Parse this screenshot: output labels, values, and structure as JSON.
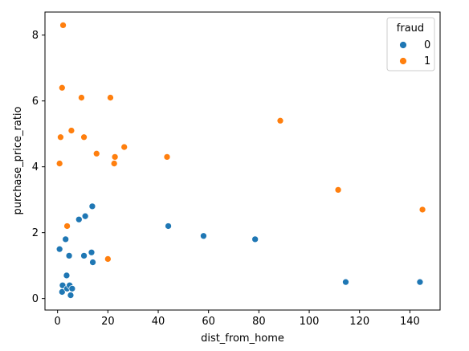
{
  "chart_data": {
    "type": "scatter",
    "xlabel": "dist_from_home",
    "ylabel": "purchase_price_ratio",
    "xlim": [
      -5,
      152
    ],
    "ylim": [
      -0.35,
      8.7
    ],
    "xticks": [
      0,
      20,
      40,
      60,
      80,
      100,
      120,
      140
    ],
    "yticks": [
      0,
      2,
      4,
      6,
      8
    ],
    "grid": false,
    "legend": {
      "title": "fraud",
      "placement": "top-right"
    },
    "series": [
      {
        "name": "0",
        "color": "#1f77b4",
        "points": [
          [
            0.8,
            1.5
          ],
          [
            1.8,
            0.2
          ],
          [
            2.0,
            0.4
          ],
          [
            3.2,
            1.8
          ],
          [
            3.6,
            0.7
          ],
          [
            3.8,
            0.3
          ],
          [
            4.6,
            1.3
          ],
          [
            4.8,
            0.4
          ],
          [
            5.2,
            0.1
          ],
          [
            5.8,
            0.3
          ],
          [
            8.5,
            2.4
          ],
          [
            10.5,
            1.3
          ],
          [
            11.0,
            2.5
          ],
          [
            13.5,
            1.4
          ],
          [
            13.8,
            2.8
          ],
          [
            14.0,
            1.1
          ],
          [
            44.0,
            2.2
          ],
          [
            58.0,
            1.9
          ],
          [
            78.5,
            1.8
          ],
          [
            114.5,
            0.5
          ],
          [
            144.0,
            0.5
          ]
        ]
      },
      {
        "name": "1",
        "color": "#ff7f0e",
        "points": [
          [
            0.8,
            4.1
          ],
          [
            1.2,
            4.9
          ],
          [
            1.8,
            6.4
          ],
          [
            2.2,
            8.3
          ],
          [
            3.8,
            2.2
          ],
          [
            5.5,
            5.1
          ],
          [
            9.5,
            6.1
          ],
          [
            10.5,
            4.9
          ],
          [
            15.5,
            4.4
          ],
          [
            20.0,
            1.2
          ],
          [
            21.0,
            6.1
          ],
          [
            22.5,
            4.1
          ],
          [
            22.8,
            4.3
          ],
          [
            26.5,
            4.6
          ],
          [
            43.5,
            4.3
          ],
          [
            88.5,
            5.4
          ],
          [
            111.5,
            3.3
          ],
          [
            145.0,
            2.7
          ]
        ]
      }
    ]
  }
}
